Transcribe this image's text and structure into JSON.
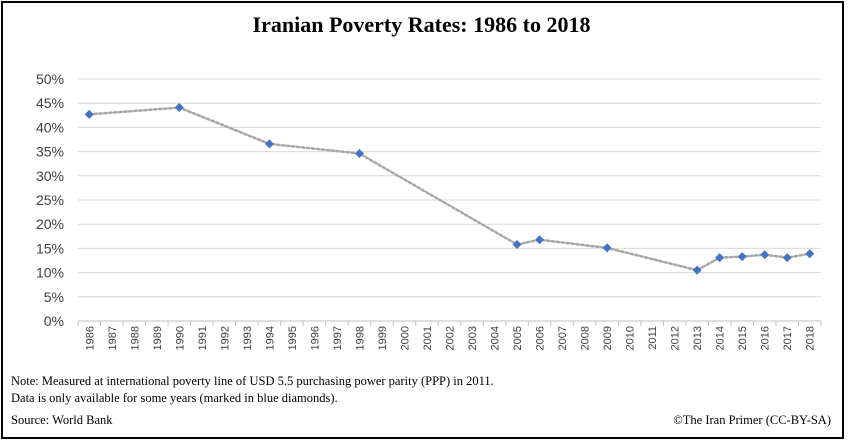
{
  "chart_data": {
    "type": "line",
    "title": "Iranian Poverty Rates: 1986 to 2018",
    "x_categories": [
      "1986",
      "1987",
      "1988",
      "1989",
      "1990",
      "1991",
      "1992",
      "1993",
      "1994",
      "1995",
      "1996",
      "1997",
      "1998",
      "1999",
      "2000",
      "2001",
      "2002",
      "2003",
      "2004",
      "2005",
      "2006",
      "2007",
      "2008",
      "2009",
      "2010",
      "2011",
      "2012",
      "2013",
      "2014",
      "2015",
      "2016",
      "2017",
      "2018"
    ],
    "y_ticks": [
      "50%",
      "45%",
      "40%",
      "35%",
      "30%",
      "25%",
      "20%",
      "15%",
      "10%",
      "5%",
      "0%"
    ],
    "ylim": [
      0,
      50
    ],
    "grid": true,
    "legend": "none",
    "marker": "diamond",
    "line_style": "dotted",
    "colors": {
      "marker": "#4472C4",
      "line": "#A6A6A6",
      "grid": "#D9D9D9"
    },
    "series": [
      {
        "points": [
          {
            "x": "1986",
            "y": 42.7
          },
          {
            "x": "1990",
            "y": 44.1
          },
          {
            "x": "1994",
            "y": 36.6
          },
          {
            "x": "1998",
            "y": 34.6
          },
          {
            "x": "2005",
            "y": 15.8
          },
          {
            "x": "2006",
            "y": 16.8
          },
          {
            "x": "2009",
            "y": 15.1
          },
          {
            "x": "2013",
            "y": 10.5
          },
          {
            "x": "2014",
            "y": 13.1
          },
          {
            "x": "2015",
            "y": 13.3
          },
          {
            "x": "2016",
            "y": 13.7
          },
          {
            "x": "2017",
            "y": 13.1
          },
          {
            "x": "2018",
            "y": 13.9
          }
        ]
      }
    ]
  },
  "footer": {
    "note_line1": "Note: Measured at international poverty line of USD 5.5 purchasing power parity (PPP) in 2011.",
    "note_line2": "Data is only available for some years (marked in blue diamonds).",
    "source": "Source:  World Bank",
    "credit": "©The Iran Primer (CC-BY-SA)"
  }
}
